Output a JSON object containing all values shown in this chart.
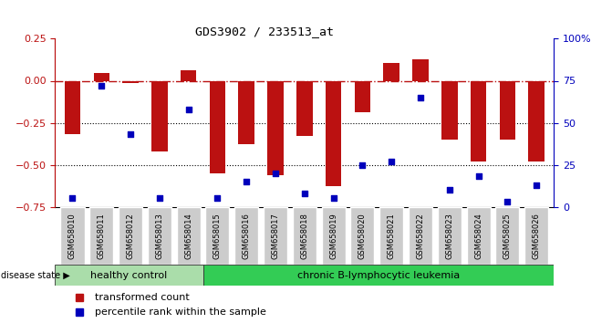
{
  "title": "GDS3902 / 233513_at",
  "samples": [
    "GSM658010",
    "GSM658011",
    "GSM658012",
    "GSM658013",
    "GSM658014",
    "GSM658015",
    "GSM658016",
    "GSM658017",
    "GSM658018",
    "GSM658019",
    "GSM658020",
    "GSM658021",
    "GSM658022",
    "GSM658023",
    "GSM658024",
    "GSM658025",
    "GSM658026"
  ],
  "bar_values": [
    -0.32,
    0.045,
    -0.015,
    -0.42,
    0.065,
    -0.55,
    -0.38,
    -0.56,
    -0.33,
    -0.63,
    -0.19,
    0.105,
    0.13,
    -0.35,
    -0.48,
    -0.35,
    -0.48
  ],
  "percentile_values": [
    5,
    72,
    43,
    5,
    58,
    5,
    15,
    20,
    8,
    5,
    25,
    27,
    65,
    10,
    18,
    3,
    13
  ],
  "healthy_count": 5,
  "ylim_left": [
    -0.75,
    0.25
  ],
  "ylim_right": [
    0,
    100
  ],
  "yticks_left": [
    0.25,
    0.0,
    -0.25,
    -0.5,
    -0.75
  ],
  "yticks_right": [
    100,
    75,
    50,
    25,
    0
  ],
  "ytick_labels_right": [
    "100%",
    "75",
    "50",
    "25",
    "0"
  ],
  "bar_color": "#BB1111",
  "dot_color": "#0000BB",
  "hline_color": "#BB1111",
  "dotline1": -0.25,
  "dotline2": -0.5,
  "healthy_label": "healthy control",
  "disease_label": "chronic B-lymphocytic leukemia",
  "healthy_bg": "#AADDAA",
  "disease_bg": "#33CC55",
  "group_label": "disease state",
  "legend1": "transformed count",
  "legend2": "percentile rank within the sample",
  "bar_width": 0.55
}
